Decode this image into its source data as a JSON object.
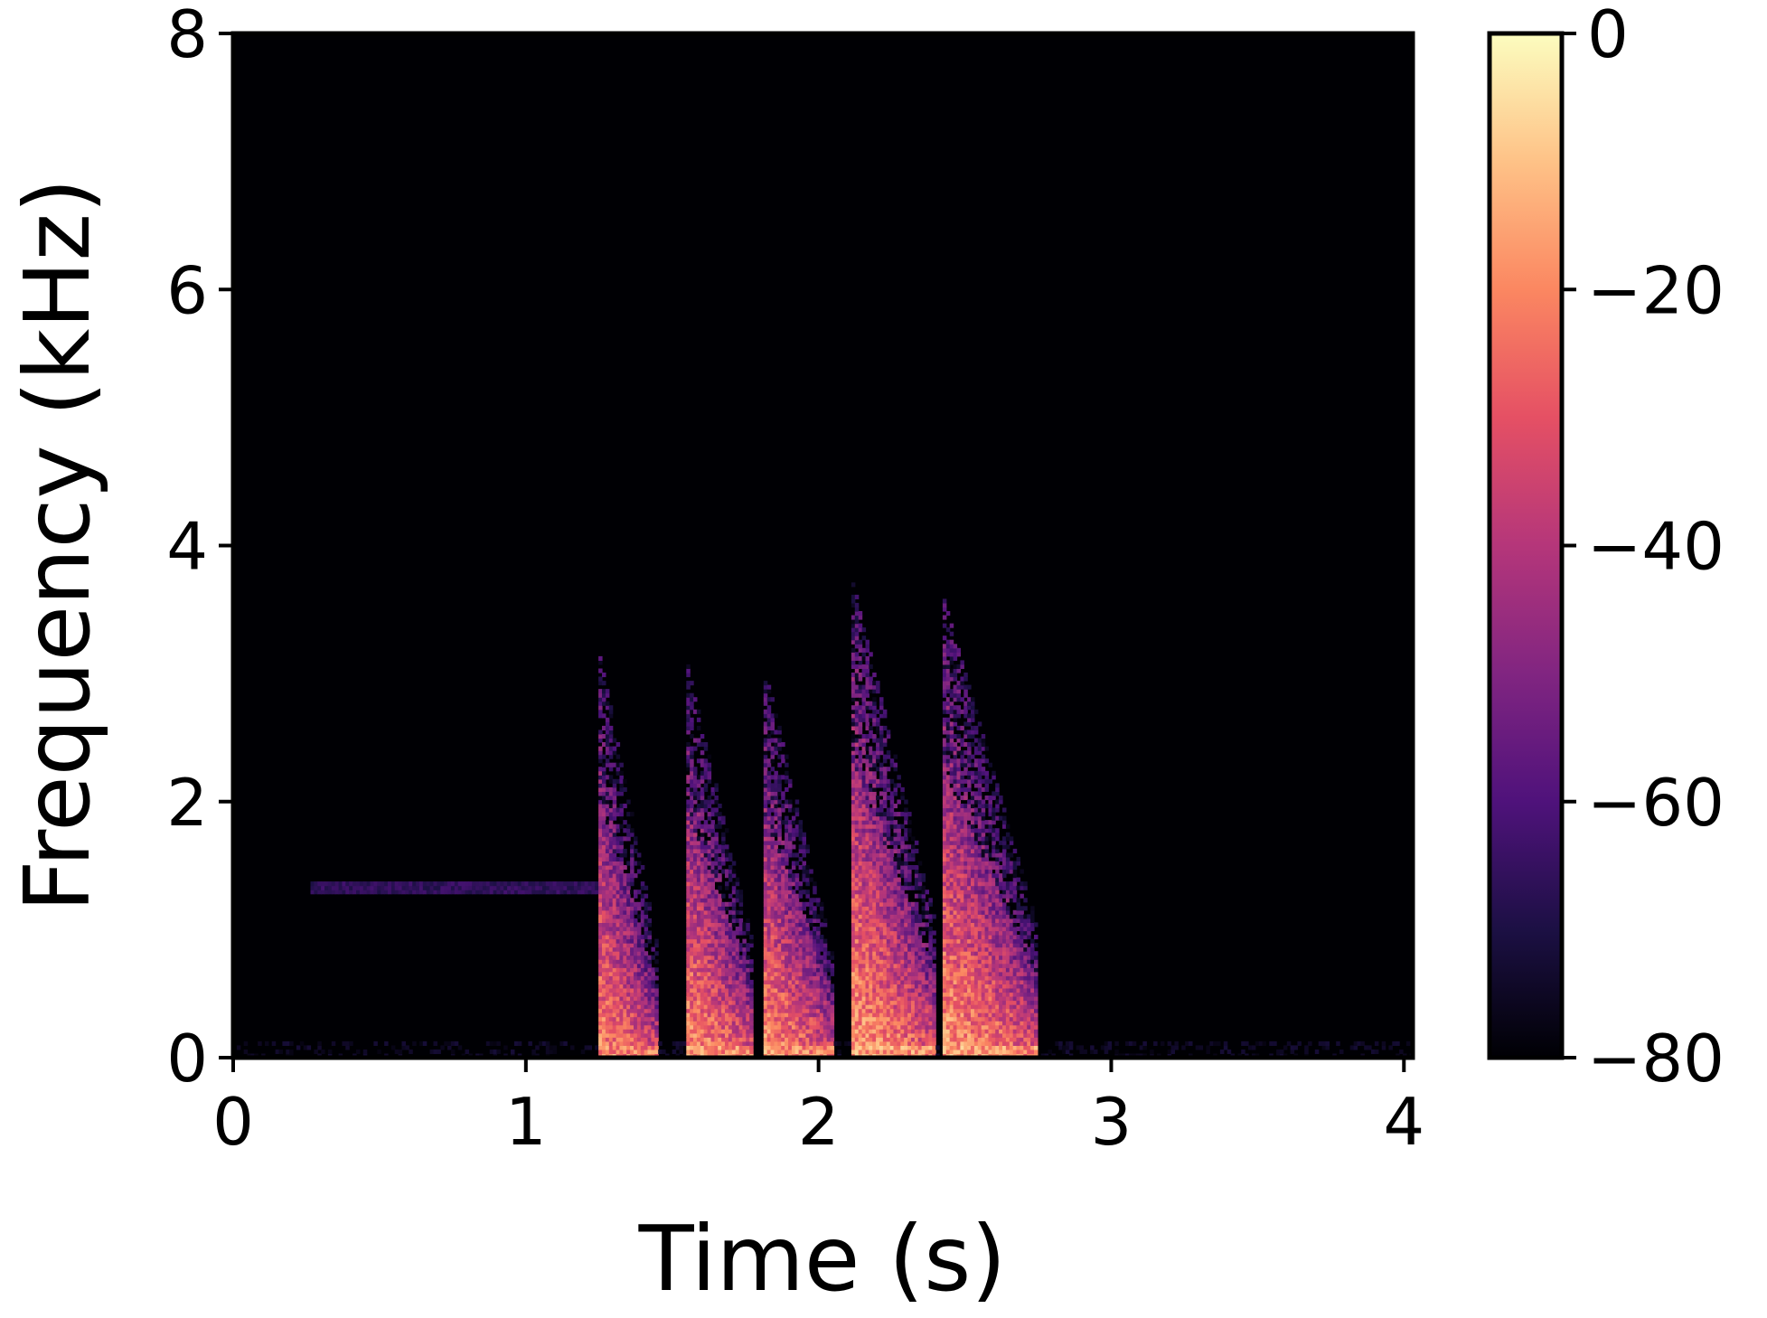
{
  "chart_data": {
    "type": "heatmap",
    "title": "",
    "xlabel": "Time (s)",
    "ylabel": "Frequency (kHz)",
    "xlim": [
      0,
      4.03
    ],
    "ylim": [
      0,
      8
    ],
    "x_ticks": [
      0,
      1,
      2,
      3,
      4
    ],
    "x_tick_labels": [
      "0",
      "1",
      "2",
      "3",
      "4"
    ],
    "y_ticks": [
      0,
      2,
      4,
      6,
      8
    ],
    "y_tick_labels": [
      "0",
      "2",
      "4",
      "6",
      "8"
    ],
    "colormap": "magma",
    "colormap_stops": [
      "#000004",
      "#1c1044",
      "#4f127b",
      "#812581",
      "#b5367a",
      "#e55064",
      "#fb8761",
      "#fec287",
      "#fcfdbf"
    ],
    "colorbar": {
      "label": "",
      "range": [
        -80,
        0
      ],
      "ticks": [
        0,
        -20,
        -40,
        -60,
        -80
      ],
      "tick_labels": [
        "0",
        "−20",
        "−40",
        "−60",
        "−80"
      ]
    },
    "grid": false,
    "tone": {
      "start_time": 0.27,
      "end_time": 1.27,
      "frequency": 1.33,
      "level_db": -62
    },
    "syllables": [
      {
        "start": 1.25,
        "end": 1.45,
        "max_freq": 3.2,
        "peak_db": -8
      },
      {
        "start": 1.55,
        "end": 1.78,
        "max_freq": 3.1,
        "peak_db": -6
      },
      {
        "start": 1.81,
        "end": 2.05,
        "max_freq": 3.1,
        "peak_db": -7
      },
      {
        "start": 2.11,
        "end": 2.4,
        "max_freq": 3.8,
        "peak_db": -4
      },
      {
        "start": 2.43,
        "end": 2.75,
        "max_freq": 3.6,
        "peak_db": -5
      }
    ]
  }
}
